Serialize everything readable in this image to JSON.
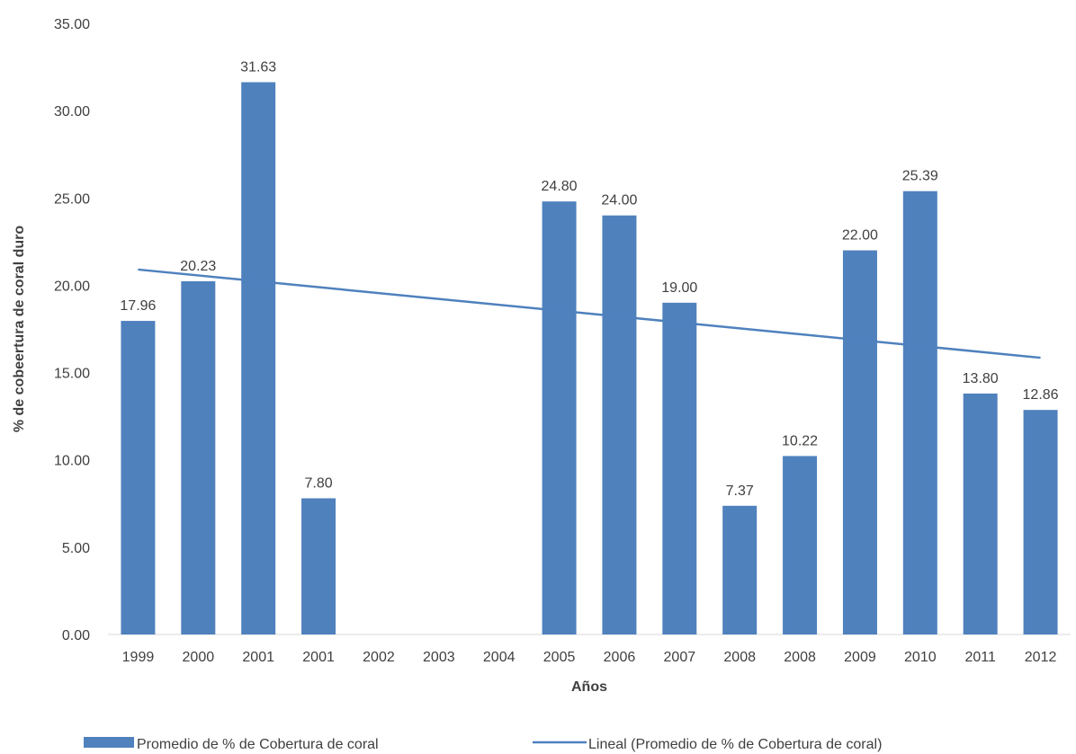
{
  "chart_data": {
    "type": "bar",
    "categories": [
      "1999",
      "2000",
      "2001",
      "2001",
      "2002",
      "2003",
      "2004",
      "2005",
      "2006",
      "2007",
      "2008",
      "2008",
      "2009",
      "2010",
      "2011",
      "2012"
    ],
    "series": [
      {
        "name": "Promedio de % de Cobertura de coral",
        "type": "bar",
        "color": "#4F81BD",
        "values": [
          17.96,
          20.23,
          31.63,
          7.8,
          null,
          null,
          null,
          24.8,
          24.0,
          19.0,
          7.37,
          10.22,
          22.0,
          25.39,
          13.8,
          12.86
        ],
        "data_labels": [
          "17.96",
          "20.23",
          "31.63",
          "7.80",
          "",
          "",
          "",
          "24.80",
          "24.00",
          "19.00",
          "7.37",
          "10.22",
          "22.00",
          "25.39",
          "13.80",
          "12.86"
        ]
      },
      {
        "name": "Lineal (Promedio de % de Cobertura de coral)",
        "type": "trendline",
        "color": "#4F81BD",
        "start": 20.9,
        "end": 15.85
      }
    ],
    "xlabel": "Años",
    "ylabel": "% de cobeertura de coral duro",
    "ylim": [
      0,
      35
    ],
    "yticks": [
      "0.00",
      "5.00",
      "10.00",
      "15.00",
      "20.00",
      "25.00",
      "30.00",
      "35.00"
    ],
    "ytick_values": [
      0,
      5,
      10,
      15,
      20,
      25,
      30,
      35
    ],
    "grid": false,
    "legend_position": "bottom"
  }
}
